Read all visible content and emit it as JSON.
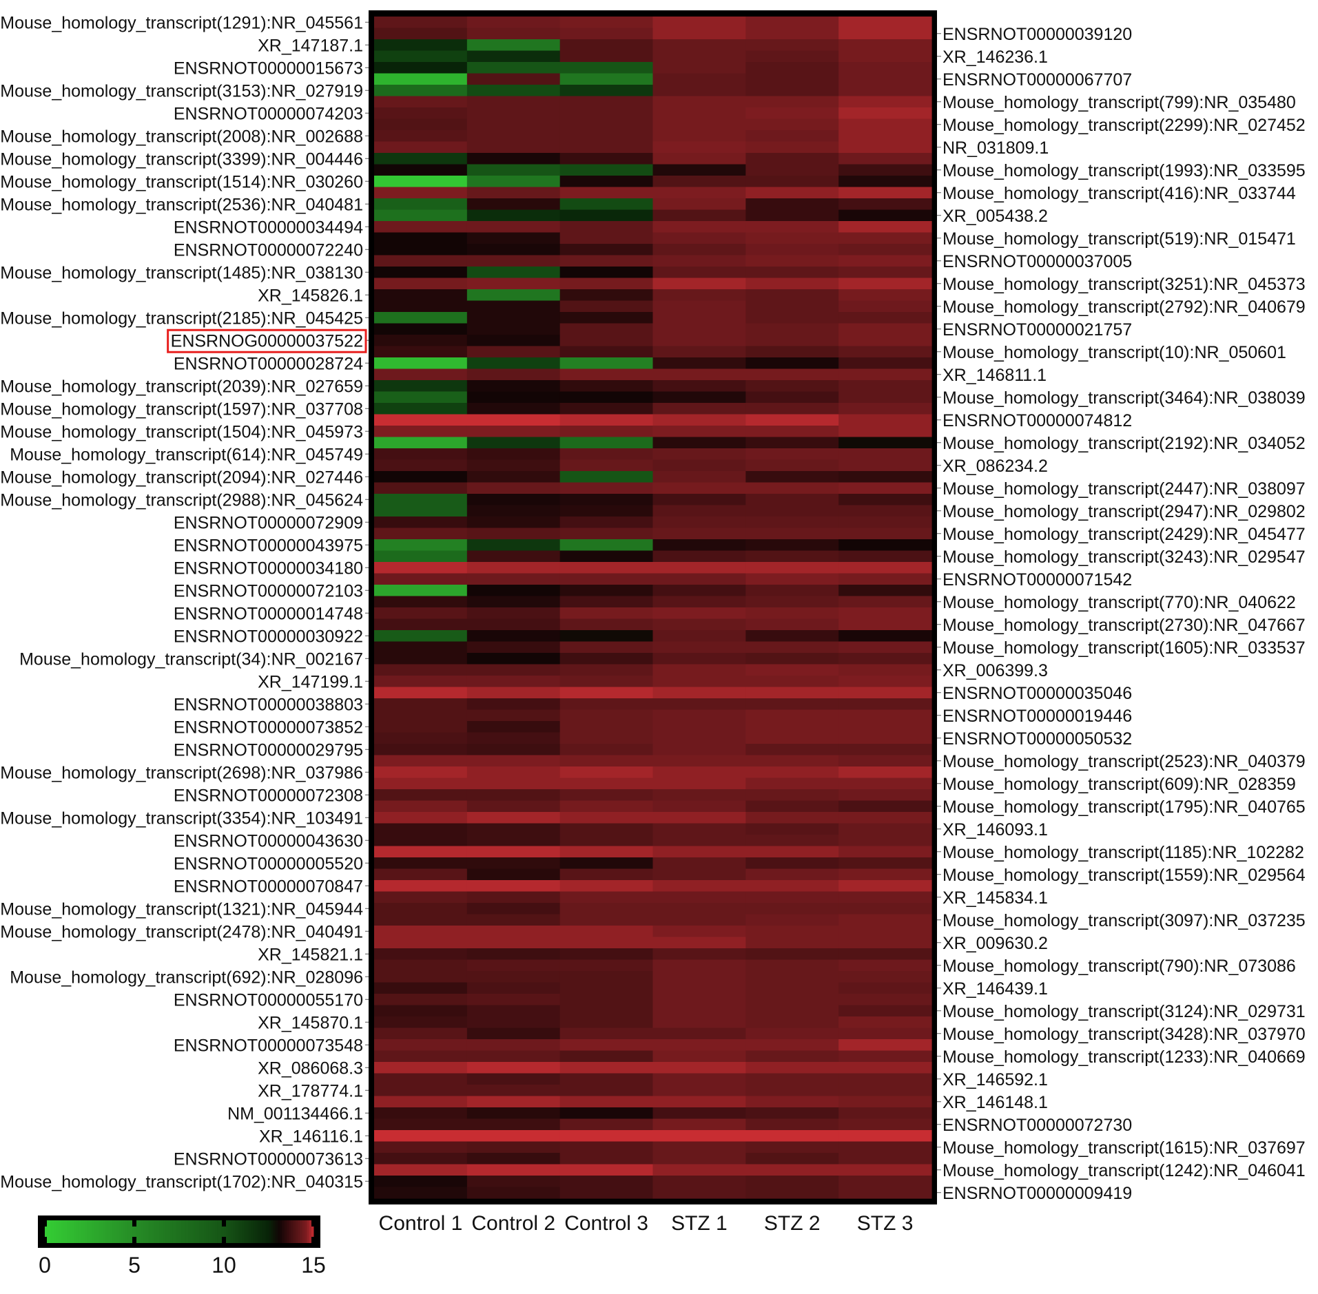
{
  "chart_data": {
    "type": "heatmap",
    "title": "",
    "columns": [
      "Control 1",
      "Control 2",
      "Control 3",
      "STZ 1",
      "STZ 2",
      "STZ 3"
    ],
    "rows": [
      "Mouse_homology_transcript(1291):NR_045561",
      "ENSRNOT00000039120",
      "XR_147187.1",
      "XR_146236.1",
      "ENSRNOT00000015673",
      "ENSRNOT00000067707",
      "Mouse_homology_transcript(3153):NR_027919",
      "Mouse_homology_transcript(799):NR_035480",
      "ENSRNOT00000074203",
      "Mouse_homology_transcript(2299):NR_027452",
      "Mouse_homology_transcript(2008):NR_002688",
      "NR_031809.1",
      "Mouse_homology_transcript(3399):NR_004446",
      "Mouse_homology_transcript(1993):NR_033595",
      "Mouse_homology_transcript(1514):NR_030260",
      "Mouse_homology_transcript(416):NR_033744",
      "Mouse_homology_transcript(2536):NR_040481",
      "XR_005438.2",
      "ENSRNOT00000034494",
      "Mouse_homology_transcript(519):NR_015471",
      "ENSRNOT00000072240",
      "ENSRNOT00000037005",
      "Mouse_homology_transcript(1485):NR_038130",
      "Mouse_homology_transcript(3251):NR_045373",
      "XR_145826.1",
      "Mouse_homology_transcript(2792):NR_040679",
      "Mouse_homology_transcript(2185):NR_045425",
      "ENSRNOT00000021757",
      "ENSRNOG00000037522",
      "Mouse_homology_transcript(10):NR_050601",
      "ENSRNOT00000028724",
      "XR_146811.1",
      "Mouse_homology_transcript(2039):NR_027659",
      "Mouse_homology_transcript(3464):NR_038039",
      "Mouse_homology_transcript(1597):NR_037708",
      "ENSRNOT00000074812",
      "Mouse_homology_transcript(1504):NR_045973",
      "Mouse_homology_transcript(2192):NR_034052",
      "Mouse_homology_transcript(614):NR_045749",
      "XR_086234.2",
      "Mouse_homology_transcript(2094):NR_027446",
      "Mouse_homology_transcript(2447):NR_038097",
      "Mouse_homology_transcript(2988):NR_045624",
      "Mouse_homology_transcript(2947):NR_029802",
      "ENSRNOT00000072909",
      "Mouse_homology_transcript(2429):NR_045477",
      "ENSRNOT00000043975",
      "Mouse_homology_transcript(3243):NR_029547",
      "ENSRNOT00000034180",
      "ENSRNOT00000071542",
      "ENSRNOT00000072103",
      "Mouse_homology_transcript(770):NR_040622",
      "ENSRNOT00000014748",
      "Mouse_homology_transcript(2730):NR_047667",
      "ENSRNOT00000030922",
      "Mouse_homology_transcript(1605):NR_033537",
      "Mouse_homology_transcript(34):NR_002167",
      "XR_006399.3",
      "XR_147199.1",
      "ENSRNOT00000035046",
      "ENSRNOT00000038803",
      "ENSRNOT00000019446",
      "ENSRNOT00000073852",
      "ENSRNOT00000050532",
      "ENSRNOT00000029795",
      "Mouse_homology_transcript(2523):NR_040379",
      "Mouse_homology_transcript(2698):NR_037986",
      "Mouse_homology_transcript(609):NR_028359",
      "ENSRNOT00000072308",
      "Mouse_homology_transcript(1795):NR_040765",
      "Mouse_homology_transcript(3354):NR_103491",
      "XR_146093.1",
      "ENSRNOT00000043630",
      "Mouse_homology_transcript(1185):NR_102282",
      "ENSRNOT00000005520",
      "Mouse_homology_transcript(1559):NR_029564",
      "ENSRNOT00000070847",
      "XR_145834.1",
      "Mouse_homology_transcript(1321):NR_045944",
      "Mouse_homology_transcript(3097):NR_037235",
      "Mouse_homology_transcript(2478):NR_040491",
      "XR_009630.2",
      "XR_145821.1",
      "Mouse_homology_transcript(790):NR_073086",
      "Mouse_homology_transcript(692):NR_028096",
      "XR_146439.1",
      "ENSRNOT00000055170",
      "Mouse_homology_transcript(3124):NR_029731",
      "XR_145870.1",
      "Mouse_homology_transcript(3428):NR_037970",
      "ENSRNOT00000073548",
      "Mouse_homology_transcript(1233):NR_040669",
      "XR_086068.3",
      "XR_146592.1",
      "XR_178774.1",
      "XR_146148.1",
      "NM_001134466.1",
      "ENSRNOT00000072730",
      "XR_146116.1",
      "Mouse_homology_transcript(1615):NR_037697",
      "ENSRNOT00000073613",
      "Mouse_homology_transcript(1242):NR_046041",
      "Mouse_homology_transcript(1702):NR_040315",
      "ENSRNOT00000009419"
    ],
    "highlighted_row": "ENSRNOG00000037522",
    "highlight_color": "#e8201f",
    "values": [
      [
        14.2,
        14.4,
        14.5,
        14.7,
        14.6,
        14.8
      ],
      [
        14.0,
        14.3,
        14.4,
        14.7,
        14.6,
        14.8
      ],
      [
        12,
        7,
        14.0,
        14.3,
        14.3,
        14.5
      ],
      [
        11,
        12,
        14.0,
        14.3,
        14.2,
        14.5
      ],
      [
        12.5,
        10,
        10,
        14.3,
        14.1,
        14.4
      ],
      [
        2,
        14.0,
        7,
        14.2,
        14.1,
        14.4
      ],
      [
        8,
        10.5,
        11.5,
        14.2,
        14.1,
        14.4
      ],
      [
        14.3,
        14.2,
        14.2,
        14.5,
        14.5,
        14.7
      ],
      [
        14.1,
        14.2,
        14.2,
        14.5,
        14.6,
        14.8
      ],
      [
        14.0,
        14.2,
        14.2,
        14.5,
        14.5,
        14.7
      ],
      [
        14.1,
        14.2,
        14.2,
        14.5,
        14.4,
        14.7
      ],
      [
        14.4,
        14.2,
        14.2,
        14.6,
        14.5,
        14.7
      ],
      [
        11.5,
        13.2,
        13.6,
        14.5,
        14.1,
        14.4
      ],
      [
        13.1,
        10,
        10.5,
        13.3,
        14.1,
        13.7
      ],
      [
        0.5,
        7,
        13.2,
        14.0,
        14.0,
        13.3
      ],
      [
        14.6,
        14.3,
        14.6,
        14.6,
        14.7,
        14.8
      ],
      [
        9,
        13.4,
        10.5,
        14.5,
        13.6,
        13.8
      ],
      [
        7.5,
        12,
        12.3,
        14.0,
        13.6,
        13.2
      ],
      [
        14.4,
        14.4,
        14.2,
        14.6,
        14.6,
        14.8
      ],
      [
        13.1,
        13.3,
        14.2,
        14.4,
        14.5,
        14.5
      ],
      [
        13.1,
        13.2,
        13.6,
        14.2,
        14.4,
        14.3
      ],
      [
        14.2,
        14.2,
        14.3,
        14.4,
        14.5,
        14.6
      ],
      [
        13.1,
        10.5,
        13.1,
        14.2,
        14.2,
        14.3
      ],
      [
        14.5,
        14.6,
        14.5,
        14.8,
        14.7,
        14.8
      ],
      [
        13.3,
        7,
        13.5,
        14.3,
        14.2,
        14.5
      ],
      [
        13.3,
        13.3,
        14.0,
        14.4,
        14.2,
        14.4
      ],
      [
        7.5,
        13.3,
        13.4,
        14.4,
        14.2,
        14.2
      ],
      [
        13.1,
        13.3,
        14.1,
        14.4,
        14.3,
        14.5
      ],
      [
        13.4,
        13.2,
        14.1,
        14.4,
        14.3,
        14.5
      ],
      [
        13.6,
        14.1,
        13.8,
        14.2,
        14.0,
        14.2
      ],
      [
        1.5,
        11,
        6,
        13.5,
        13.2,
        13.8
      ],
      [
        14.4,
        14.2,
        14.5,
        14.5,
        14.5,
        14.5
      ],
      [
        11.5,
        13.2,
        13.5,
        13.8,
        14.0,
        14.2
      ],
      [
        9,
        13.1,
        13.1,
        13.3,
        13.8,
        14.2
      ],
      [
        11,
        13.3,
        13.6,
        14.2,
        14.2,
        14.4
      ],
      [
        15,
        15,
        14.9,
        14.8,
        14.9,
        14.7
      ],
      [
        14.6,
        14.6,
        14.5,
        14.6,
        14.6,
        14.7
      ],
      [
        3,
        11.5,
        8,
        13.4,
        13.6,
        13.0
      ],
      [
        13.8,
        13.6,
        14.2,
        14.3,
        14.4,
        14.4
      ],
      [
        13.9,
        13.7,
        14.3,
        14.2,
        14.3,
        14.4
      ],
      [
        13.1,
        13.5,
        10,
        14.3,
        13.6,
        13.5
      ],
      [
        14.0,
        14.3,
        14.4,
        14.5,
        14.5,
        14.6
      ],
      [
        9.5,
        13.2,
        13.3,
        13.8,
        14.1,
        13.7
      ],
      [
        9.5,
        13.3,
        13.4,
        14.1,
        14.1,
        14.1
      ],
      [
        13.6,
        13.4,
        13.8,
        14.2,
        14.2,
        14.2
      ],
      [
        14.2,
        14.1,
        14.2,
        14.3,
        14.3,
        14.3
      ],
      [
        6,
        11.5,
        7,
        13.3,
        13.4,
        13.1
      ],
      [
        8,
        13.7,
        13.2,
        13.9,
        14.0,
        13.9
      ],
      [
        14.9,
        14.8,
        14.8,
        14.8,
        14.8,
        14.8
      ],
      [
        14.4,
        14.4,
        14.4,
        14.4,
        14.6,
        14.5
      ],
      [
        3,
        13.1,
        13.4,
        13.8,
        14.1,
        13.5
      ],
      [
        13.5,
        13.3,
        13.8,
        14.1,
        14.2,
        14.3
      ],
      [
        14.1,
        13.9,
        14.5,
        14.6,
        14.5,
        14.6
      ],
      [
        13.8,
        13.8,
        14.2,
        14.3,
        14.4,
        14.6
      ],
      [
        9.5,
        13.2,
        13.0,
        14.2,
        13.6,
        13.2
      ],
      [
        13.4,
        13.6,
        14.2,
        14.3,
        14.3,
        14.4
      ],
      [
        13.4,
        13.1,
        13.7,
        14.1,
        14.0,
        14.1
      ],
      [
        14.1,
        14.1,
        14.2,
        14.5,
        14.6,
        14.5
      ],
      [
        14.4,
        14.4,
        14.3,
        14.5,
        14.5,
        14.6
      ],
      [
        14.9,
        14.8,
        14.9,
        14.8,
        14.8,
        14.8
      ],
      [
        14.0,
        13.8,
        14.2,
        14.2,
        14.2,
        14.2
      ],
      [
        14.0,
        14.0,
        14.3,
        14.4,
        14.5,
        14.5
      ],
      [
        14.0,
        13.6,
        14.3,
        14.4,
        14.5,
        14.5
      ],
      [
        13.9,
        13.8,
        14.3,
        14.4,
        14.5,
        14.5
      ],
      [
        13.8,
        13.7,
        14.2,
        14.4,
        14.2,
        14.2
      ],
      [
        14.6,
        14.6,
        14.5,
        14.5,
        14.5,
        14.4
      ],
      [
        14.8,
        14.7,
        14.8,
        14.7,
        14.7,
        14.8
      ],
      [
        14.7,
        14.7,
        14.7,
        14.7,
        14.6,
        14.6
      ],
      [
        14.0,
        14.0,
        14.2,
        14.3,
        14.3,
        14.4
      ],
      [
        14.5,
        14.2,
        14.5,
        14.4,
        14.1,
        13.9
      ],
      [
        14.7,
        14.8,
        14.7,
        14.7,
        14.5,
        14.5
      ],
      [
        13.6,
        13.7,
        14.0,
        14.2,
        14.1,
        14.3
      ],
      [
        13.6,
        13.7,
        14.0,
        14.2,
        14.2,
        14.3
      ],
      [
        14.9,
        14.9,
        14.8,
        14.7,
        14.7,
        14.6
      ],
      [
        13.5,
        13.5,
        13.3,
        14.2,
        13.9,
        14.0
      ],
      [
        14.1,
        13.4,
        14.1,
        14.2,
        14.4,
        14.5
      ],
      [
        14.9,
        14.9,
        14.8,
        14.7,
        14.7,
        14.8
      ],
      [
        14.2,
        14.1,
        14.4,
        14.4,
        14.4,
        14.4
      ],
      [
        14.0,
        13.8,
        14.3,
        14.3,
        14.3,
        14.3
      ],
      [
        14.0,
        14.0,
        14.3,
        14.3,
        14.4,
        14.5
      ],
      [
        14.7,
        14.7,
        14.7,
        14.6,
        14.5,
        14.5
      ],
      [
        14.7,
        14.7,
        14.7,
        14.7,
        14.5,
        14.5
      ],
      [
        13.8,
        13.7,
        13.8,
        14.1,
        14.0,
        14.0
      ],
      [
        14.0,
        14.1,
        14.1,
        14.4,
        14.3,
        14.4
      ],
      [
        14.0,
        14.0,
        14.0,
        14.4,
        14.3,
        14.3
      ],
      [
        13.6,
        13.9,
        14.0,
        14.4,
        14.3,
        14.2
      ],
      [
        14.0,
        14.1,
        14.0,
        14.4,
        14.3,
        14.3
      ],
      [
        13.6,
        13.8,
        14.0,
        14.4,
        14.3,
        14.1
      ],
      [
        13.7,
        13.8,
        14.0,
        14.4,
        14.3,
        14.5
      ],
      [
        14.1,
        13.6,
        14.2,
        14.2,
        14.4,
        14.4
      ],
      [
        14.4,
        14.4,
        14.6,
        14.6,
        14.6,
        14.8
      ],
      [
        14.2,
        14.2,
        14.0,
        14.5,
        14.3,
        14.4
      ],
      [
        14.8,
        14.9,
        14.8,
        14.8,
        14.7,
        14.7
      ],
      [
        14.1,
        13.9,
        14.1,
        14.4,
        14.3,
        14.3
      ],
      [
        14.1,
        14.1,
        14.1,
        14.4,
        14.3,
        14.3
      ],
      [
        14.7,
        14.8,
        14.7,
        14.7,
        14.6,
        14.5
      ],
      [
        13.6,
        13.4,
        13.2,
        13.8,
        13.9,
        14.2
      ],
      [
        13.7,
        13.7,
        14.2,
        14.5,
        14.2,
        14.3
      ],
      [
        15,
        15,
        15,
        15,
        15,
        15
      ],
      [
        14.1,
        14.0,
        14.1,
        14.3,
        14.2,
        14.2
      ],
      [
        13.8,
        13.6,
        14.1,
        14.3,
        14.0,
        14.2
      ],
      [
        14.8,
        14.9,
        14.9,
        14.7,
        14.7,
        14.7
      ],
      [
        13.2,
        13.7,
        13.8,
        14.1,
        14.0,
        14.2
      ],
      [
        13.3,
        13.6,
        13.8,
        14.1,
        14.0,
        14.2
      ]
    ],
    "colorbar": {
      "min": 0,
      "max": 15,
      "ticks": [
        "0",
        "5",
        "10",
        "15"
      ],
      "tick_values": [
        0,
        5,
        10,
        15
      ]
    },
    "colormap": [
      {
        "value": 0,
        "color": "#34cd34"
      },
      {
        "value": 5,
        "color": "#268c26"
      },
      {
        "value": 10,
        "color": "#165516"
      },
      {
        "value": 12.5,
        "color": "#082308"
      },
      {
        "value": 13.1,
        "color": "#120505"
      },
      {
        "value": 13.6,
        "color": "#370c0e"
      },
      {
        "value": 14.2,
        "color": "#5f1619"
      },
      {
        "value": 14.6,
        "color": "#7d1c20"
      },
      {
        "value": 15,
        "color": "#c82d32"
      }
    ]
  }
}
